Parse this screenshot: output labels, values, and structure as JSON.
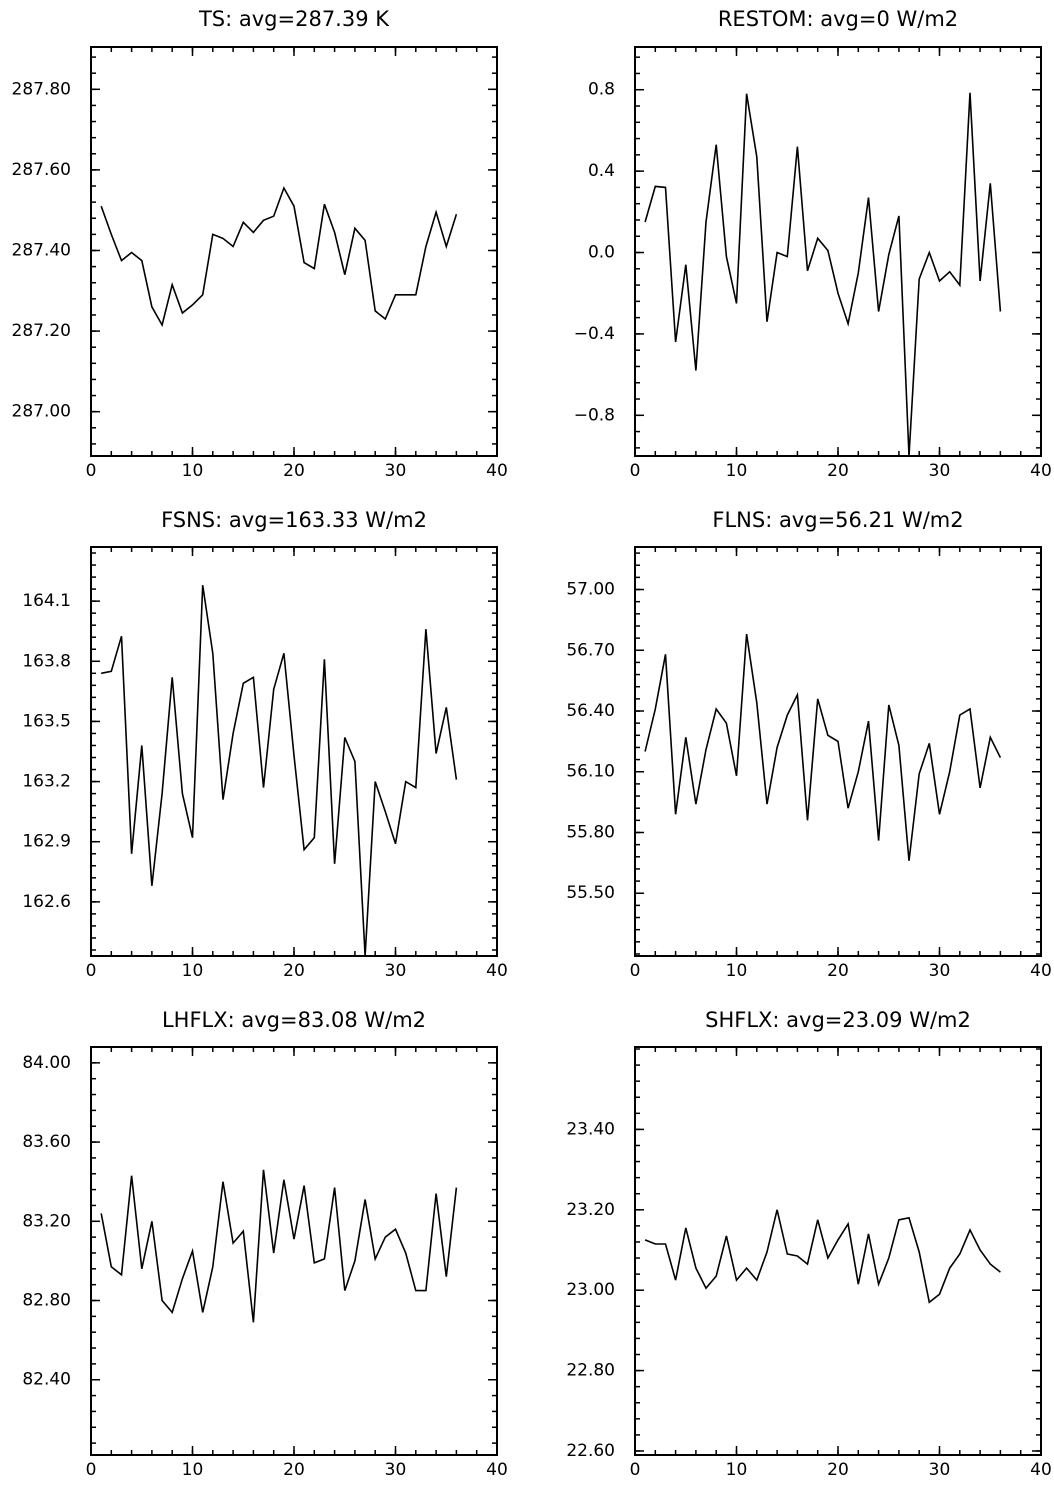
{
  "chart_data": [
    {
      "type": "line",
      "title": "TS: avg=287.39 K",
      "xlim": [
        0,
        40
      ],
      "ylim": [
        286.89,
        287.905
      ],
      "x_ticks": [
        0,
        10,
        20,
        30,
        40
      ],
      "y_ticks": [
        287.0,
        287.2,
        287.4,
        287.6,
        287.8
      ],
      "y_tick_labels": [
        "287.00",
        "287.20",
        "287.40",
        "287.60",
        "287.80"
      ],
      "x_minor_step": 2,
      "y_minor_step": 0.04,
      "grid": false,
      "series": [
        {
          "x": [
            1,
            2,
            3,
            4,
            5,
            6,
            7,
            8,
            9,
            10,
            11,
            12,
            13,
            14,
            15,
            16,
            17,
            18,
            19,
            20,
            21,
            22,
            23,
            24,
            25,
            26,
            27,
            28,
            29,
            30,
            31,
            32,
            33,
            34,
            35,
            36
          ],
          "y": [
            287.51,
            287.44,
            287.375,
            287.395,
            287.375,
            287.26,
            287.215,
            287.315,
            287.245,
            287.265,
            287.29,
            287.44,
            287.43,
            287.41,
            287.47,
            287.445,
            287.475,
            287.485,
            287.555,
            287.51,
            287.37,
            287.355,
            287.515,
            287.445,
            287.34,
            287.455,
            287.425,
            287.25,
            287.23,
            287.29,
            287.29,
            287.29,
            287.41,
            287.495,
            287.41,
            287.49
          ]
        }
      ]
    },
    {
      "type": "line",
      "title": "RESTOM: avg=0 W/m2",
      "xlim": [
        0,
        40
      ],
      "ylim": [
        -1.0,
        1.01
      ],
      "x_ticks": [
        0,
        10,
        20,
        30,
        40
      ],
      "y_ticks": [
        -0.8,
        -0.4,
        0.0,
        0.4,
        0.8
      ],
      "y_tick_labels": [
        "−0.8",
        "−0.4",
        "0.0",
        "0.4",
        "0.8"
      ],
      "x_minor_step": 2,
      "y_minor_step": 0.08,
      "grid": false,
      "series": [
        {
          "x": [
            1,
            2,
            3,
            4,
            5,
            6,
            7,
            8,
            9,
            10,
            11,
            12,
            13,
            14,
            15,
            16,
            17,
            18,
            19,
            20,
            21,
            22,
            23,
            24,
            25,
            26,
            27,
            28,
            29,
            30,
            31,
            32,
            33,
            34,
            35,
            36
          ],
          "y": [
            0.15,
            0.325,
            0.32,
            -0.44,
            -0.06,
            -0.58,
            0.15,
            0.53,
            -0.02,
            -0.25,
            0.78,
            0.47,
            -0.34,
            0.0,
            -0.02,
            0.52,
            -0.09,
            0.07,
            0.01,
            -0.2,
            -0.35,
            -0.1,
            0.27,
            -0.29,
            -0.01,
            0.18,
            -1.0,
            -0.13,
            0.0,
            -0.14,
            -0.095,
            -0.16,
            0.785,
            -0.14,
            0.34,
            -0.29
          ]
        }
      ]
    },
    {
      "type": "line",
      "title": "FSNS: avg=163.33 W/m2",
      "xlim": [
        0,
        40
      ],
      "ylim": [
        162.33,
        164.37
      ],
      "x_ticks": [
        0,
        10,
        20,
        30,
        40
      ],
      "y_ticks": [
        162.6,
        162.9,
        163.2,
        163.5,
        163.8,
        164.1
      ],
      "y_tick_labels": [
        "162.6",
        "162.9",
        "163.2",
        "163.5",
        "163.8",
        "164.1"
      ],
      "x_minor_step": 2,
      "y_minor_step": 0.06,
      "grid": false,
      "series": [
        {
          "x": [
            1,
            2,
            3,
            4,
            5,
            6,
            7,
            8,
            9,
            10,
            11,
            12,
            13,
            14,
            15,
            16,
            17,
            18,
            19,
            20,
            21,
            22,
            23,
            24,
            25,
            26,
            27,
            28,
            29,
            30,
            31,
            32,
            33,
            34,
            35,
            36
          ],
          "y": [
            163.74,
            163.75,
            163.925,
            162.84,
            163.38,
            162.68,
            163.14,
            163.72,
            163.14,
            162.92,
            164.18,
            163.84,
            163.11,
            163.44,
            163.69,
            163.72,
            163.17,
            163.66,
            163.84,
            163.33,
            162.86,
            162.92,
            163.81,
            162.79,
            163.42,
            163.3,
            162.33,
            163.2,
            163.05,
            162.89,
            163.2,
            163.17,
            163.96,
            163.34,
            163.57,
            163.21
          ]
        }
      ]
    },
    {
      "type": "line",
      "title": "FLNS: avg=56.21 W/m2",
      "xlim": [
        0,
        40
      ],
      "ylim": [
        55.19,
        57.21
      ],
      "x_ticks": [
        0,
        10,
        20,
        30,
        40
      ],
      "y_ticks": [
        55.5,
        55.8,
        56.1,
        56.4,
        56.7,
        57.0
      ],
      "y_tick_labels": [
        "55.50",
        "55.80",
        "56.10",
        "56.40",
        "56.70",
        "57.00"
      ],
      "x_minor_step": 2,
      "y_minor_step": 0.06,
      "grid": false,
      "series": [
        {
          "x": [
            1,
            2,
            3,
            4,
            5,
            6,
            7,
            8,
            9,
            10,
            11,
            12,
            13,
            14,
            15,
            16,
            17,
            18,
            19,
            20,
            21,
            22,
            23,
            24,
            25,
            26,
            27,
            28,
            29,
            30,
            31,
            32,
            33,
            34,
            35,
            36
          ],
          "y": [
            56.2,
            56.41,
            56.68,
            55.89,
            56.27,
            55.94,
            56.21,
            56.41,
            56.34,
            56.08,
            56.78,
            56.44,
            55.94,
            56.22,
            56.38,
            56.48,
            55.86,
            56.46,
            56.28,
            56.25,
            55.92,
            56.1,
            56.35,
            55.76,
            56.43,
            56.23,
            55.66,
            56.09,
            56.24,
            55.89,
            56.1,
            56.38,
            56.41,
            56.02,
            56.27,
            56.17
          ]
        }
      ]
    },
    {
      "type": "line",
      "title": "LHFLX: avg=83.08 W/m2",
      "xlim": [
        0,
        40
      ],
      "ylim": [
        82.02,
        84.08
      ],
      "x_ticks": [
        0,
        10,
        20,
        30,
        40
      ],
      "y_ticks": [
        82.4,
        82.8,
        83.2,
        83.6,
        84.0
      ],
      "y_tick_labels": [
        "82.40",
        "82.80",
        "83.20",
        "83.60",
        "84.00"
      ],
      "x_minor_step": 2,
      "y_minor_step": 0.08,
      "grid": false,
      "series": [
        {
          "x": [
            1,
            2,
            3,
            4,
            5,
            6,
            7,
            8,
            9,
            10,
            11,
            12,
            13,
            14,
            15,
            16,
            17,
            18,
            19,
            20,
            21,
            22,
            23,
            24,
            25,
            26,
            27,
            28,
            29,
            30,
            31,
            32,
            33,
            34,
            35,
            36
          ],
          "y": [
            83.24,
            82.97,
            82.93,
            83.43,
            82.96,
            83.2,
            82.8,
            82.74,
            82.91,
            83.05,
            82.74,
            82.97,
            83.4,
            83.09,
            83.15,
            82.69,
            83.46,
            83.04,
            83.41,
            83.11,
            83.38,
            82.99,
            83.01,
            83.37,
            82.85,
            83.0,
            83.31,
            83.01,
            83.12,
            83.16,
            83.04,
            82.85,
            82.85,
            83.34,
            82.92,
            83.37
          ]
        }
      ]
    },
    {
      "type": "line",
      "title": "SHFLX: avg=23.09 W/m2",
      "xlim": [
        0,
        40
      ],
      "ylim": [
        22.59,
        23.605
      ],
      "x_ticks": [
        0,
        10,
        20,
        30,
        40
      ],
      "y_ticks": [
        22.6,
        22.8,
        23.0,
        23.2,
        23.4
      ],
      "y_tick_labels": [
        "22.60",
        "22.80",
        "23.00",
        "23.20",
        "23.40"
      ],
      "x_minor_step": 2,
      "y_minor_step": 0.04,
      "grid": false,
      "series": [
        {
          "x": [
            1,
            2,
            3,
            4,
            5,
            6,
            7,
            8,
            9,
            10,
            11,
            12,
            13,
            14,
            15,
            16,
            17,
            18,
            19,
            20,
            21,
            22,
            23,
            24,
            25,
            26,
            27,
            28,
            29,
            30,
            31,
            32,
            33,
            34,
            35,
            36
          ],
          "y": [
            23.125,
            23.115,
            23.115,
            23.025,
            23.155,
            23.055,
            23.005,
            23.035,
            23.135,
            23.025,
            23.055,
            23.025,
            23.095,
            23.2,
            23.09,
            23.085,
            23.065,
            23.175,
            23.08,
            23.125,
            23.165,
            23.015,
            23.14,
            23.015,
            23.08,
            23.175,
            23.18,
            23.095,
            22.97,
            22.99,
            23.055,
            23.09,
            23.15,
            23.1,
            23.065,
            23.045
          ]
        }
      ]
    }
  ]
}
